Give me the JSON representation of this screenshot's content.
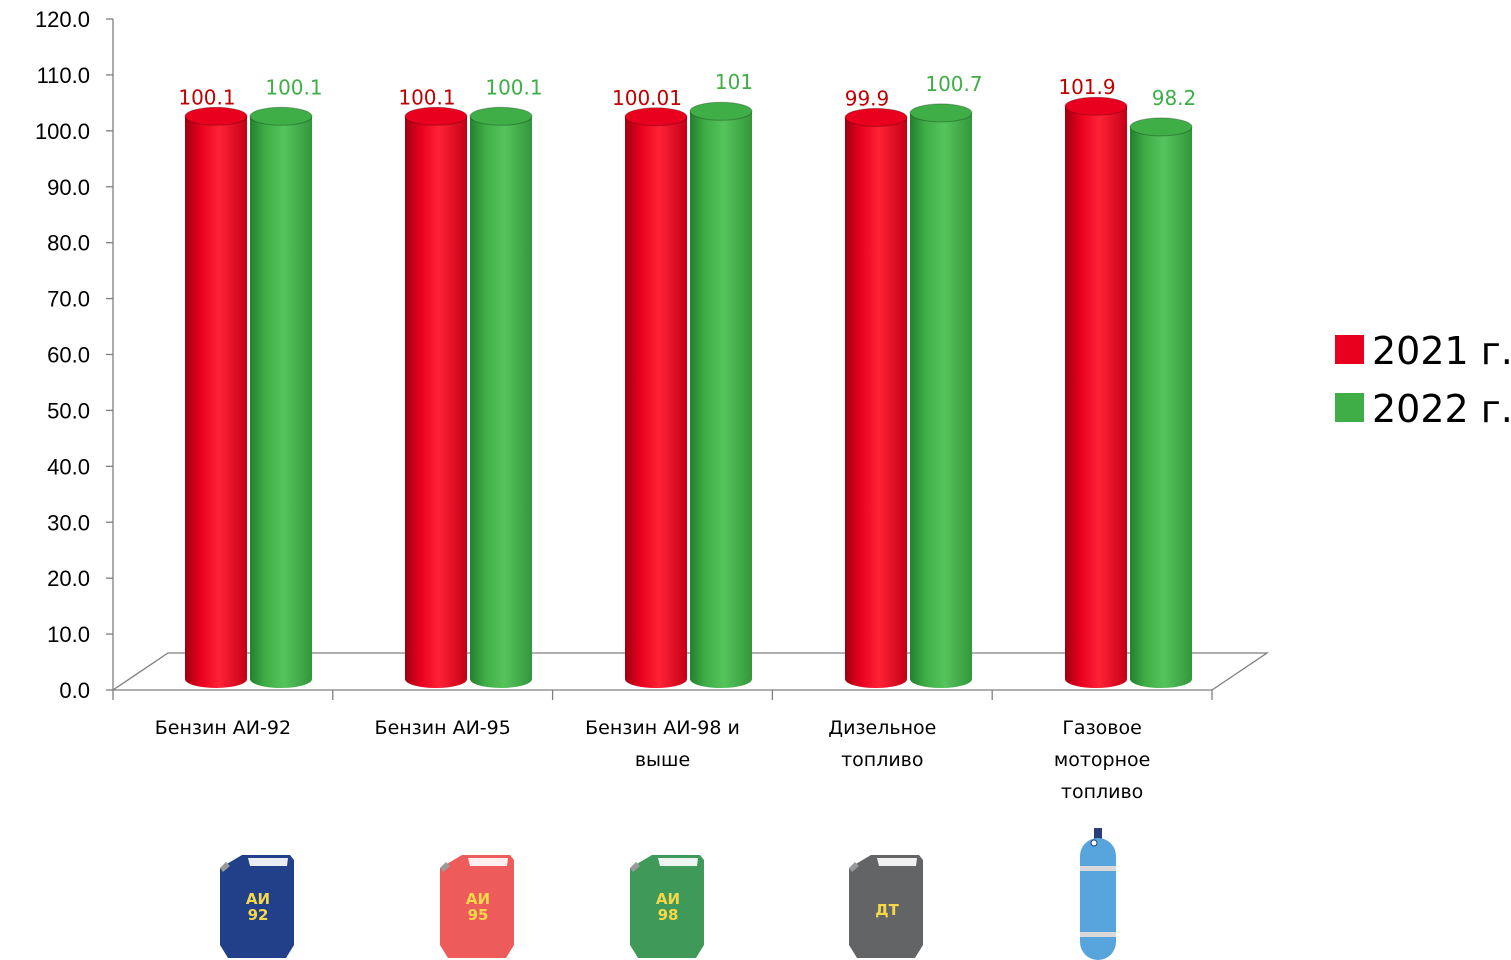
{
  "chart_data": {
    "type": "bar",
    "categories": [
      [
        "Бензин АИ-92"
      ],
      [
        "Бензин АИ-95"
      ],
      [
        "Бензин АИ-98 и",
        "выше"
      ],
      [
        "Дизельное",
        "топливо"
      ],
      [
        "Газовое",
        "моторное",
        "топливо"
      ]
    ],
    "series": [
      {
        "name": "2021 г.",
        "values": [
          100.1,
          100.1,
          100.01,
          99.9,
          101.9
        ],
        "labels": [
          "100.1",
          "100.1",
          "100.01",
          "99.9",
          "101.9"
        ]
      },
      {
        "name": "2022 г.",
        "values": [
          100.1,
          100.1,
          101,
          100.7,
          98.2
        ],
        "labels": [
          "100.1",
          "100.1",
          "101",
          "100.7",
          "98.2"
        ]
      }
    ],
    "ylim": [
      0,
      120
    ],
    "yticks": [
      "0.0",
      "10.0",
      "20.0",
      "30.0",
      "40.0",
      "50.0",
      "60.0",
      "70.0",
      "80.0",
      "90.0",
      "100.0",
      "110.0",
      "120.0"
    ],
    "grid": false,
    "legend_position": "right",
    "colors": {
      "2021 г.": "#e8001e",
      "2022 г.": "#3fae47"
    },
    "label_colors": {
      "2021 г.": "#c00000",
      "2022 г.": "#3fae47"
    }
  },
  "icons": [
    {
      "name": "fuel-canister-ai92-icon",
      "shape": "canister",
      "lines": [
        "АИ",
        "92"
      ],
      "color": "#22408a",
      "text_color": "#f5d84a"
    },
    {
      "name": "fuel-canister-ai95-icon",
      "shape": "canister",
      "lines": [
        "АИ",
        "95"
      ],
      "color": "#ee5b5b",
      "text_color": "#f5d84a"
    },
    {
      "name": "fuel-canister-ai98-icon",
      "shape": "canister",
      "lines": [
        "АИ",
        "98"
      ],
      "color": "#3f9a5a",
      "text_color": "#f5d84a"
    },
    {
      "name": "fuel-canister-diesel-icon",
      "shape": "canister",
      "lines": [
        "ДТ"
      ],
      "color": "#636466",
      "text_color": "#f5d84a"
    },
    {
      "name": "gas-cylinder-icon",
      "shape": "cylinder",
      "lines": [],
      "color": "#57a5dc",
      "text_color": "#ffffff"
    }
  ]
}
